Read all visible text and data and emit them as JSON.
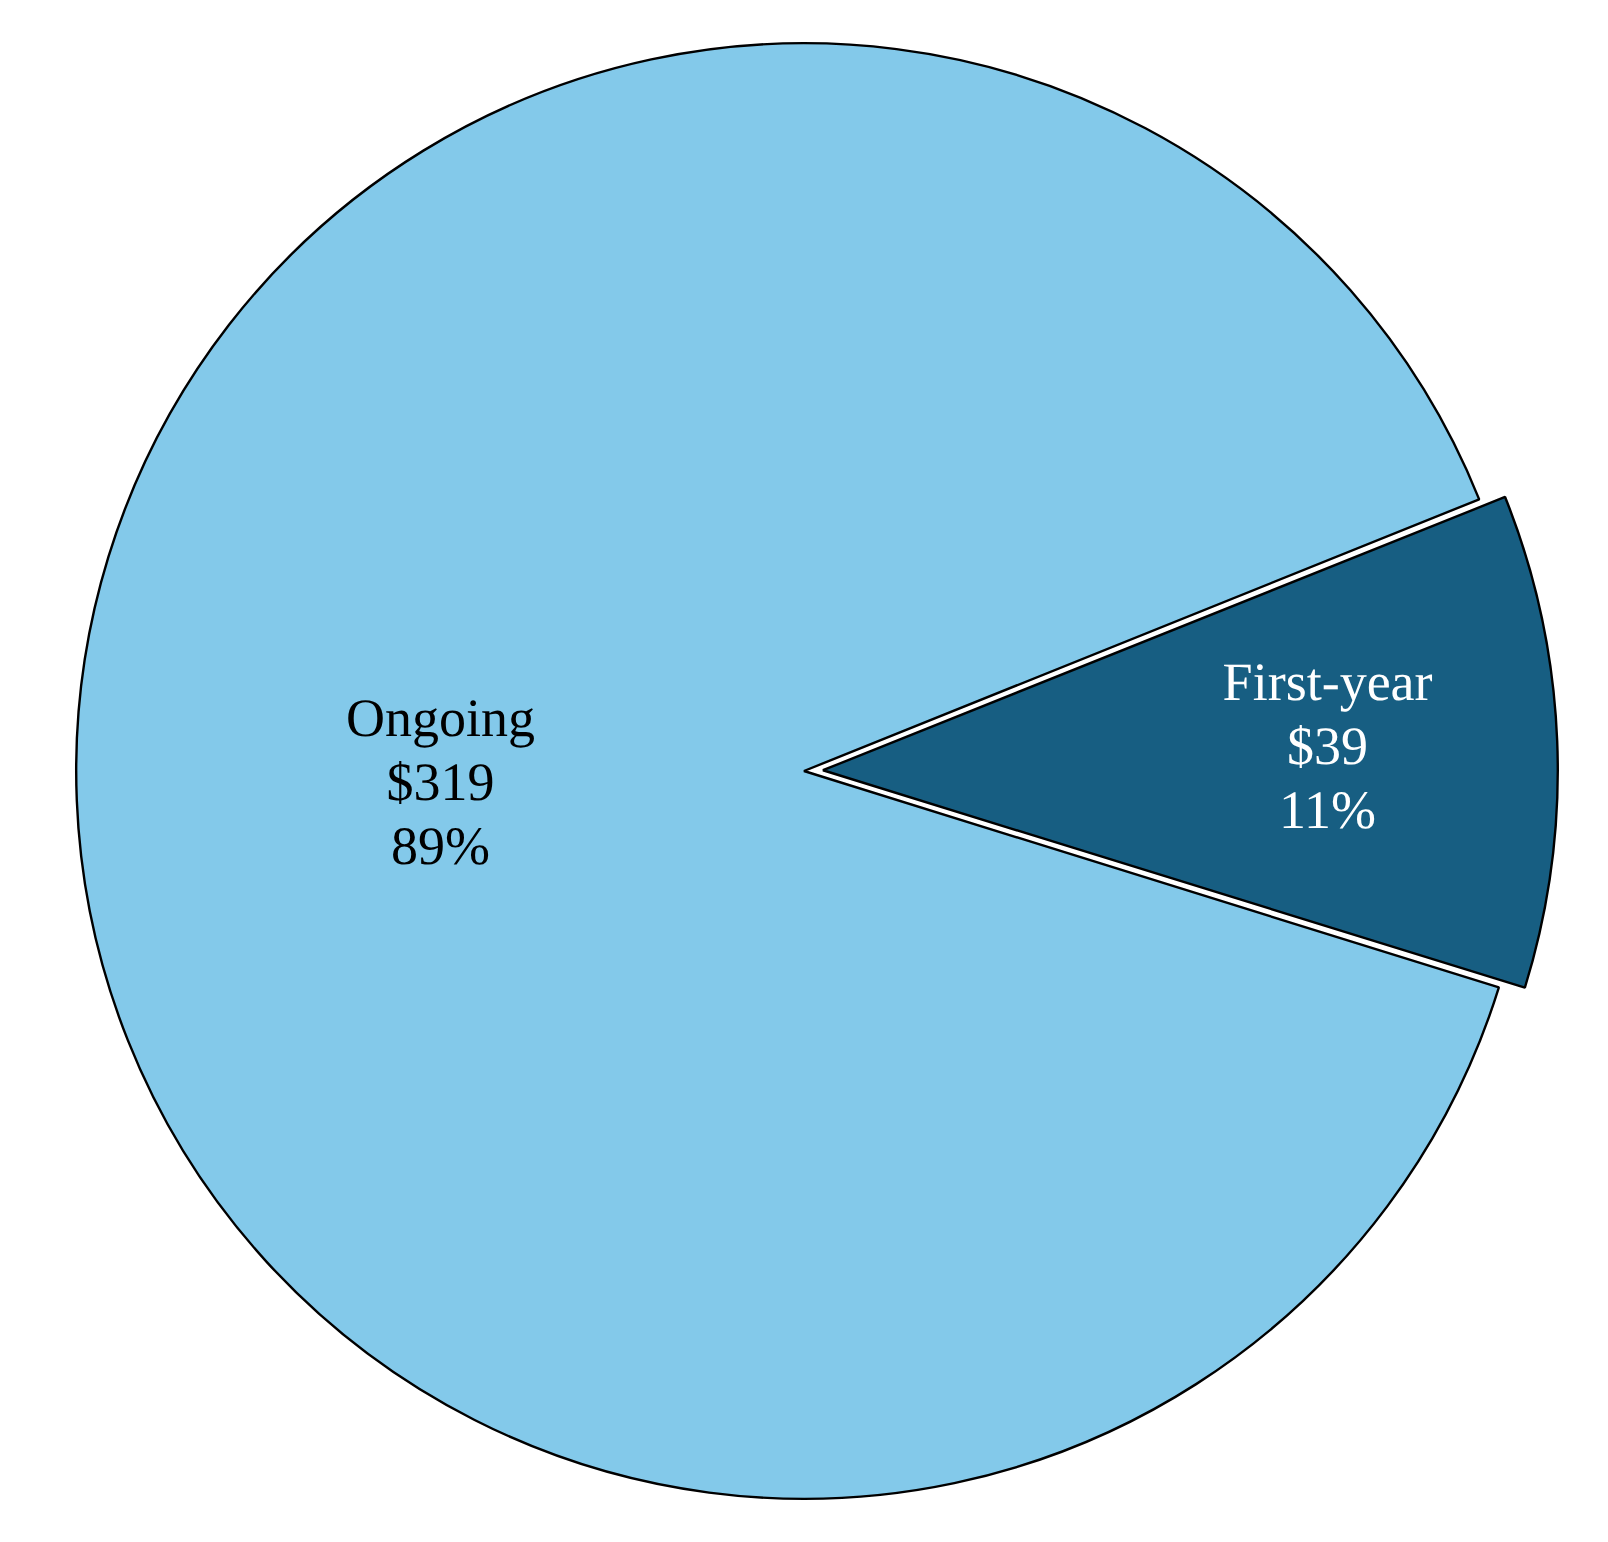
{
  "chart_data": {
    "type": "pie",
    "categories": [
      "Ongoing",
      "First-year"
    ],
    "values": [
      319,
      39
    ],
    "colors": [
      "#83c9ea",
      "#175e82"
    ],
    "value_labels": [
      "$319\n89%",
      "$39\n11%"
    ],
    "legend": false
  }
}
